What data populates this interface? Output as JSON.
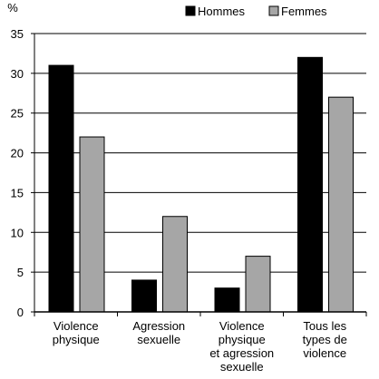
{
  "chart_data": {
    "type": "bar",
    "y_unit": "%",
    "categories": [
      [
        "Violence",
        "physique"
      ],
      [
        "Agression",
        "sexuelle"
      ],
      [
        "Violence",
        "physique",
        "et agression",
        "sexuelle"
      ],
      [
        "Tous les",
        "types de",
        "violence"
      ]
    ],
    "series": [
      {
        "name": "Hommes",
        "color": "#000000",
        "values": [
          31,
          4,
          3,
          32
        ]
      },
      {
        "name": "Femmes",
        "color": "#a6a6a6",
        "values": [
          22,
          12,
          7,
          27
        ]
      }
    ],
    "ylim": [
      0,
      35
    ],
    "yticks": [
      0,
      5,
      10,
      15,
      20,
      25,
      30,
      35
    ],
    "grid": "horizontal",
    "legend_position": "top-right"
  }
}
